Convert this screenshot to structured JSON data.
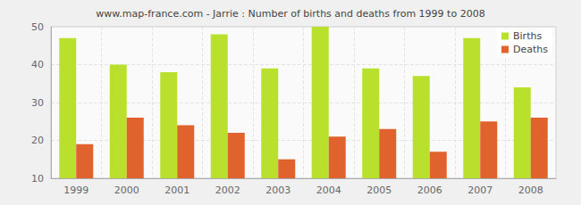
{
  "chart_data": {
    "type": "bar",
    "title": "www.map-france.com - Jarrie : Number of births and deaths from 1999 to 2008",
    "categories": [
      "1999",
      "2000",
      "2001",
      "2002",
      "2003",
      "2004",
      "2005",
      "2006",
      "2007",
      "2008"
    ],
    "series": [
      {
        "name": "Births",
        "color": "#b8e02c",
        "values": [
          47,
          40,
          38,
          48,
          39,
          50,
          39,
          37,
          47,
          34
        ]
      },
      {
        "name": "Deaths",
        "color": "#e0622d",
        "values": [
          19,
          26,
          24,
          22,
          15,
          21,
          23,
          17,
          25,
          26
        ]
      }
    ],
    "ylim": [
      10,
      50
    ],
    "yticks": [
      10,
      20,
      30,
      40,
      50
    ],
    "grid": true,
    "legend": "top-right"
  }
}
